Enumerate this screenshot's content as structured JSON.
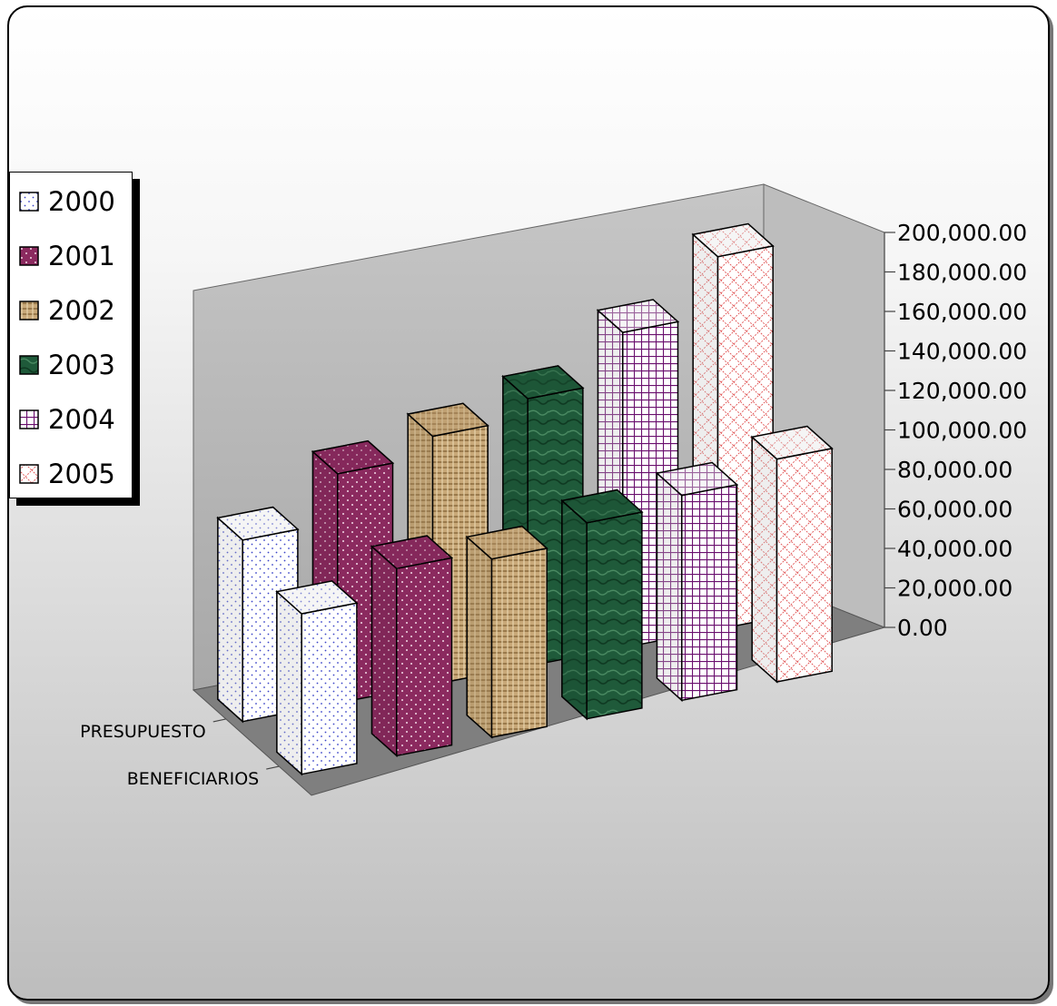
{
  "chart_data": {
    "type": "bar",
    "title": "",
    "categories": [
      "PRESUPUESTO",
      "BENEFICIARIOS"
    ],
    "series": [
      {
        "name": "2000",
        "values": [
          95000,
          90000
        ]
      },
      {
        "name": "2001",
        "values": [
          120000,
          105000
        ]
      },
      {
        "name": "2002",
        "values": [
          130000,
          100000
        ]
      },
      {
        "name": "2003",
        "values": [
          140000,
          110000
        ]
      },
      {
        "name": "2004",
        "values": [
          165000,
          115000
        ]
      },
      {
        "name": "2005",
        "values": [
          195000,
          125000
        ]
      }
    ],
    "yticks": [
      "0.00",
      "20,000.00",
      "40,000.00",
      "60,000.00",
      "80,000.00",
      "100,000.00",
      "120,000.00",
      "140,000.00",
      "160,000.00",
      "180,000.00",
      "200,000.00"
    ],
    "ylim": [
      0,
      200000
    ],
    "legend_position": "left",
    "colors": {
      "2000": "#ffffff",
      "2001": "#8b2a5f",
      "2002": "#c8a878",
      "2003": "#1f5a3a",
      "2004": "#ffffff",
      "2005": "#ffffff"
    }
  }
}
